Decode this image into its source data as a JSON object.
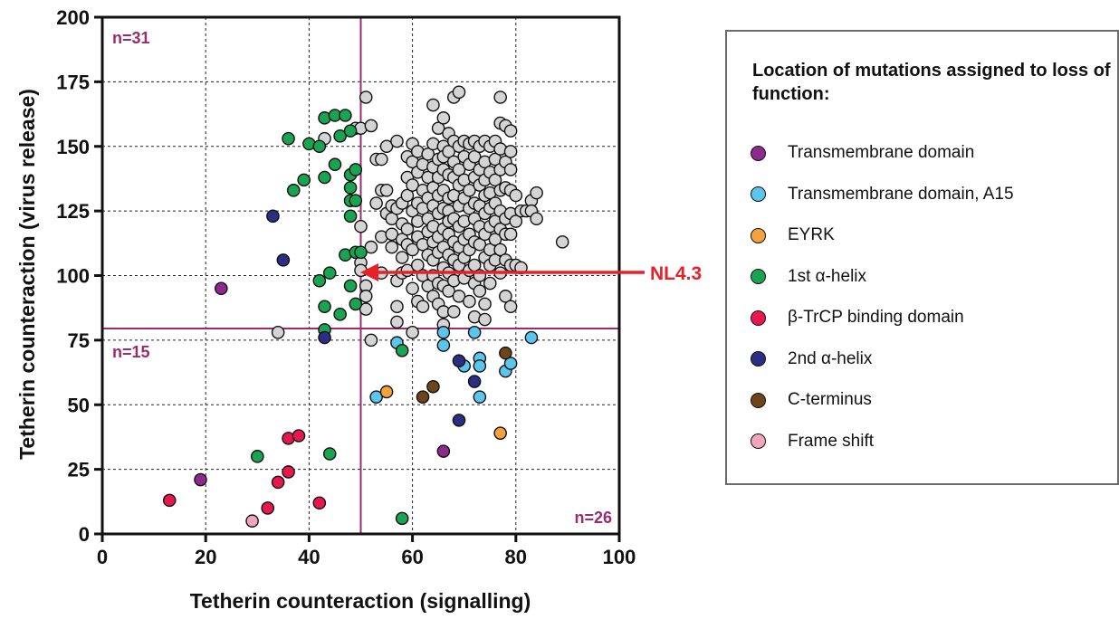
{
  "chart_data": {
    "type": "scatter",
    "xlabel": "Tetherin counteraction (signalling)",
    "ylabel": "Tetherin counteraction (virus release)",
    "xlim": [
      0,
      100
    ],
    "ylim": [
      0,
      200
    ],
    "xticks": [
      0,
      20,
      40,
      60,
      80,
      100
    ],
    "yticks": [
      0,
      25,
      50,
      75,
      100,
      125,
      150,
      175,
      200
    ],
    "grid": true,
    "thresholds": {
      "x": 50,
      "y": 79.5,
      "color": "#9a2c6e"
    },
    "quadrant_labels": [
      {
        "text": "n=31",
        "corner": "top-left"
      },
      {
        "text": "n=15",
        "corner": "lower-left"
      },
      {
        "text": "n=26",
        "corner": "bottom-right"
      }
    ],
    "annotation": {
      "text": "NL4.3",
      "x": 50.5,
      "y": 101,
      "color": "#e8202a"
    },
    "legend": {
      "title": "Location of mutations assigned to loss of function:",
      "placement": "right"
    },
    "series": [
      {
        "name": "Transmembrane domain",
        "color": "#8e2a8e",
        "points": [
          [
            19,
            21
          ],
          [
            23,
            95
          ],
          [
            66,
            32
          ]
        ]
      },
      {
        "name": "Transmembrane domain, A15",
        "color": "#5bc5ec",
        "points": [
          [
            53,
            53
          ],
          [
            57,
            74
          ],
          [
            66,
            78
          ],
          [
            66,
            73
          ],
          [
            70,
            65
          ],
          [
            72,
            78
          ],
          [
            73,
            68
          ],
          [
            73,
            65
          ],
          [
            73,
            53
          ],
          [
            78,
            63
          ],
          [
            79,
            66
          ],
          [
            83,
            76
          ]
        ]
      },
      {
        "name": "EYRK",
        "color": "#f4a23c",
        "points": [
          [
            55,
            55
          ],
          [
            77,
            39
          ]
        ]
      },
      {
        "name": "1st α-helix",
        "color": "#1aa452",
        "points": [
          [
            30,
            30
          ],
          [
            36,
            153
          ],
          [
            37,
            133
          ],
          [
            39,
            137
          ],
          [
            40,
            151
          ],
          [
            42,
            98
          ],
          [
            42,
            150
          ],
          [
            43,
            161
          ],
          [
            43,
            138
          ],
          [
            43,
            88
          ],
          [
            43,
            79
          ],
          [
            44,
            101
          ],
          [
            44,
            31
          ],
          [
            45,
            162
          ],
          [
            45,
            143
          ],
          [
            46,
            154
          ],
          [
            46,
            85
          ],
          [
            47,
            162
          ],
          [
            47,
            108
          ],
          [
            48,
            156
          ],
          [
            48,
            139
          ],
          [
            48,
            134
          ],
          [
            48,
            129
          ],
          [
            48,
            123
          ],
          [
            48,
            96
          ],
          [
            49,
            141
          ],
          [
            49,
            129
          ],
          [
            49,
            109
          ],
          [
            49,
            89
          ],
          [
            50,
            109
          ],
          [
            58,
            6
          ],
          [
            58,
            71
          ]
        ]
      },
      {
        "name": "β-TrCP binding domain",
        "color": "#e8184f",
        "points": [
          [
            13,
            13
          ],
          [
            32,
            10
          ],
          [
            34,
            20
          ],
          [
            36,
            37
          ],
          [
            36,
            24
          ],
          [
            38,
            38
          ],
          [
            42,
            12
          ]
        ]
      },
      {
        "name": "2nd α-helix",
        "color": "#2b2e82",
        "points": [
          [
            33,
            123
          ],
          [
            35,
            106
          ],
          [
            43,
            76
          ],
          [
            69,
            67
          ],
          [
            72,
            59
          ],
          [
            69,
            44
          ]
        ]
      },
      {
        "name": "C-terminus",
        "color": "#6e4419",
        "points": [
          [
            62,
            53
          ],
          [
            64,
            57
          ],
          [
            78,
            70
          ]
        ]
      },
      {
        "name": "Frame shift",
        "color": "#f2a6be",
        "points": [
          [
            29,
            5
          ]
        ]
      },
      {
        "name": "",
        "color": "#d4d4d4",
        "points": [
          [
            34,
            78
          ],
          [
            43,
            153
          ],
          [
            49,
            157
          ],
          [
            50,
            157
          ],
          [
            50,
            119
          ],
          [
            50,
            105
          ],
          [
            50,
            102
          ],
          [
            51,
            169
          ],
          [
            51,
            96
          ],
          [
            51,
            92
          ],
          [
            51,
            87
          ],
          [
            52,
            158
          ],
          [
            52,
            111
          ],
          [
            52,
            75
          ],
          [
            53,
            145
          ],
          [
            53,
            128
          ],
          [
            54,
            145
          ],
          [
            54,
            133
          ],
          [
            54,
            115
          ],
          [
            54,
            101
          ],
          [
            55,
            150
          ],
          [
            55,
            133
          ],
          [
            55,
            124
          ],
          [
            56,
            127
          ],
          [
            56,
            122
          ],
          [
            56,
            116
          ],
          [
            56,
            111
          ],
          [
            57,
            152
          ],
          [
            57,
            126
          ],
          [
            57,
            98
          ],
          [
            57,
            88
          ],
          [
            57,
            82
          ],
          [
            58,
            128
          ],
          [
            58,
            120
          ],
          [
            58,
            114
          ],
          [
            58,
            107
          ],
          [
            58,
            101
          ],
          [
            59,
            146
          ],
          [
            59,
            138
          ],
          [
            59,
            131
          ],
          [
            59,
            118
          ],
          [
            59,
            112
          ],
          [
            59,
            102
          ],
          [
            60,
            151
          ],
          [
            60,
            144
          ],
          [
            60,
            135
          ],
          [
            60,
            125
          ],
          [
            60,
            110
          ],
          [
            60,
            95
          ],
          [
            60,
            78
          ],
          [
            61,
            148
          ],
          [
            61,
            140
          ],
          [
            61,
            128
          ],
          [
            61,
            121
          ],
          [
            61,
            115
          ],
          [
            61,
            104
          ],
          [
            61,
            90
          ],
          [
            62,
            143
          ],
          [
            62,
            133
          ],
          [
            62,
            126
          ],
          [
            62,
            112
          ],
          [
            62,
            100
          ],
          [
            62,
            88
          ],
          [
            63,
            147
          ],
          [
            63,
            138
          ],
          [
            63,
            130
          ],
          [
            63,
            122
          ],
          [
            63,
            117
          ],
          [
            63,
            108
          ],
          [
            63,
            96
          ],
          [
            64,
            166
          ],
          [
            64,
            151
          ],
          [
            64,
            142
          ],
          [
            64,
            134
          ],
          [
            64,
            127
          ],
          [
            64,
            119
          ],
          [
            64,
            113
          ],
          [
            64,
            106
          ],
          [
            64,
            100
          ],
          [
            64,
            92
          ],
          [
            65,
            157
          ],
          [
            65,
            145
          ],
          [
            65,
            138
          ],
          [
            65,
            131
          ],
          [
            65,
            124
          ],
          [
            65,
            115
          ],
          [
            65,
            109
          ],
          [
            65,
            97
          ],
          [
            65,
            89
          ],
          [
            66,
            161
          ],
          [
            66,
            150
          ],
          [
            66,
            146
          ],
          [
            66,
            141
          ],
          [
            66,
            133
          ],
          [
            66,
            126
          ],
          [
            66,
            118
          ],
          [
            66,
            111
          ],
          [
            66,
            103
          ],
          [
            66,
            96
          ],
          [
            66,
            86
          ],
          [
            66,
            81
          ],
          [
            67,
            155
          ],
          [
            67,
            148
          ],
          [
            67,
            139
          ],
          [
            67,
            130
          ],
          [
            67,
            125
          ],
          [
            67,
            121
          ],
          [
            67,
            116
          ],
          [
            67,
            108
          ],
          [
            67,
            101
          ],
          [
            67,
            94
          ],
          [
            68,
            169
          ],
          [
            68,
            152
          ],
          [
            68,
            144
          ],
          [
            68,
            138
          ],
          [
            68,
            131
          ],
          [
            68,
            122
          ],
          [
            68,
            113
          ],
          [
            68,
            106
          ],
          [
            68,
            98
          ],
          [
            68,
            86
          ],
          [
            69,
            171
          ],
          [
            69,
            150
          ],
          [
            69,
            141
          ],
          [
            69,
            135
          ],
          [
            69,
            127
          ],
          [
            69,
            119
          ],
          [
            69,
            111
          ],
          [
            69,
            104
          ],
          [
            69,
            92
          ],
          [
            70,
            152
          ],
          [
            70,
            146
          ],
          [
            70,
            137
          ],
          [
            70,
            130
          ],
          [
            70,
            121
          ],
          [
            70,
            114
          ],
          [
            70,
            107
          ],
          [
            70,
            99
          ],
          [
            71,
            151
          ],
          [
            71,
            143
          ],
          [
            71,
            133
          ],
          [
            71,
            126
          ],
          [
            71,
            116
          ],
          [
            71,
            110
          ],
          [
            71,
            102
          ],
          [
            71,
            90
          ],
          [
            72,
            152
          ],
          [
            72,
            146
          ],
          [
            72,
            138
          ],
          [
            72,
            128
          ],
          [
            72,
            122
          ],
          [
            72,
            113
          ],
          [
            72,
            104
          ],
          [
            72,
            97
          ],
          [
            72,
            84
          ],
          [
            73,
            150
          ],
          [
            73,
            141
          ],
          [
            73,
            135
          ],
          [
            73,
            127
          ],
          [
            73,
            119
          ],
          [
            73,
            112
          ],
          [
            73,
            100
          ],
          [
            73,
            94
          ],
          [
            74,
            152
          ],
          [
            74,
            144
          ],
          [
            74,
            137
          ],
          [
            74,
            131
          ],
          [
            74,
            124
          ],
          [
            74,
            116
          ],
          [
            74,
            107
          ],
          [
            74,
            89
          ],
          [
            74,
            83
          ],
          [
            75,
            150
          ],
          [
            75,
            140
          ],
          [
            75,
            132
          ],
          [
            75,
            126
          ],
          [
            75,
            119
          ],
          [
            75,
            110
          ],
          [
            75,
            104
          ],
          [
            75,
            97
          ],
          [
            76,
            152
          ],
          [
            76,
            145
          ],
          [
            76,
            137
          ],
          [
            76,
            128
          ],
          [
            76,
            121
          ],
          [
            76,
            114
          ],
          [
            76,
            106
          ],
          [
            77,
            169
          ],
          [
            77,
            159
          ],
          [
            77,
            149
          ],
          [
            77,
            141
          ],
          [
            77,
            133
          ],
          [
            77,
            125
          ],
          [
            77,
            118
          ],
          [
            77,
            110
          ],
          [
            77,
            101
          ],
          [
            78,
            158
          ],
          [
            78,
            144
          ],
          [
            78,
            134
          ],
          [
            78,
            122
          ],
          [
            78,
            116
          ],
          [
            78,
            106
          ],
          [
            78,
            92
          ],
          [
            79,
            156
          ],
          [
            79,
            148
          ],
          [
            79,
            141
          ],
          [
            79,
            133
          ],
          [
            79,
            124
          ],
          [
            79,
            116
          ],
          [
            79,
            104
          ],
          [
            79,
            88
          ],
          [
            80,
            131
          ],
          [
            80,
            121
          ],
          [
            80,
            104
          ],
          [
            81,
            125
          ],
          [
            81,
            103
          ],
          [
            82,
            125
          ],
          [
            83,
            129
          ],
          [
            83,
            125
          ],
          [
            84,
            122
          ],
          [
            84,
            132
          ],
          [
            89,
            113
          ]
        ]
      }
    ]
  }
}
